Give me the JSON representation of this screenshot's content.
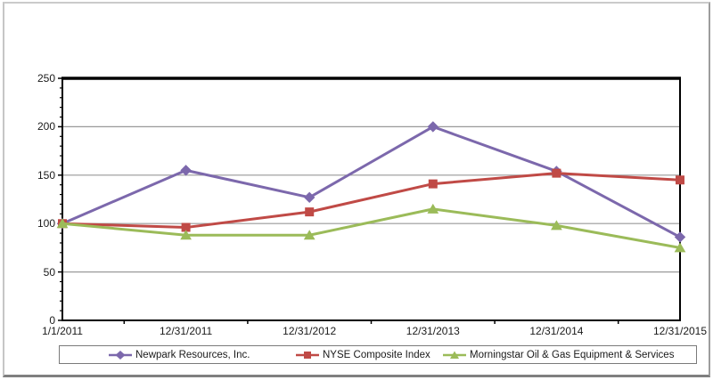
{
  "chart_data": {
    "type": "line",
    "categories": [
      "1/1/2011",
      "12/31/2011",
      "12/31/2012",
      "12/31/2013",
      "12/31/2014",
      "12/31/2015"
    ],
    "series": [
      {
        "name": "Newpark Resources, Inc.",
        "marker": "diamond",
        "color": "#7C68AC",
        "values": [
          100,
          155,
          127,
          200,
          154,
          86
        ]
      },
      {
        "name": "NYSE Composite Index",
        "marker": "square",
        "color": "#C04A46",
        "values": [
          100,
          96,
          112,
          141,
          152,
          145
        ]
      },
      {
        "name": "Morningstar Oil & Gas Equipment & Services",
        "marker": "triangle",
        "color": "#9BBB59",
        "values": [
          100,
          88,
          88,
          115,
          98,
          75
        ]
      }
    ],
    "title": "",
    "xlabel": "",
    "ylabel": "",
    "ylim": [
      0,
      250
    ],
    "y_ticks": [
      0,
      50,
      100,
      150,
      200,
      250
    ],
    "y_tick_unit": 50,
    "y_minor_unit": 10,
    "grid": "horizontal",
    "legend_position": "bottom"
  },
  "colors": {
    "grid": "#999999",
    "axis": "#000000",
    "text": "#1a1a1a"
  }
}
